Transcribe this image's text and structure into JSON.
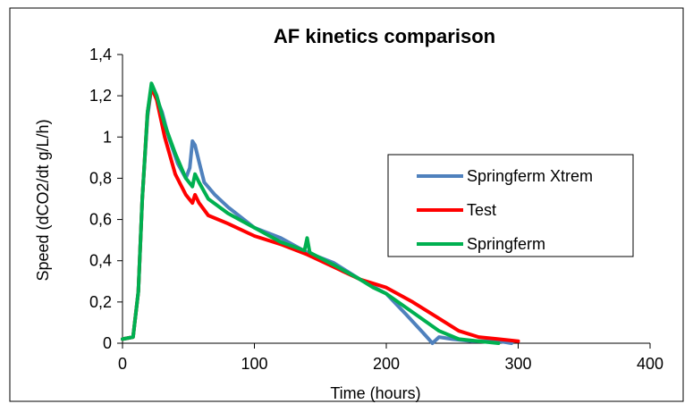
{
  "chart_data": {
    "type": "line",
    "title": "AF kinetics comparison",
    "xlabel": "Time (hours)",
    "ylabel": "Speed (dCO2/dt g/L/h)",
    "xlim": [
      0,
      400
    ],
    "ylim": [
      0,
      1.4
    ],
    "x_ticks": [
      "0",
      "100",
      "200",
      "300",
      "400"
    ],
    "y_ticks": [
      "0",
      "0,2",
      "0,4",
      "0,6",
      "0,8",
      "1",
      "1,2",
      "1,4"
    ],
    "grid": false,
    "legend_placement": "right",
    "series": [
      {
        "name": "Springferm Xtrem",
        "color": "#4f81bd",
        "points": [
          [
            0,
            0.02
          ],
          [
            8,
            0.03
          ],
          [
            12,
            0.25
          ],
          [
            15,
            0.7
          ],
          [
            19,
            1.1
          ],
          [
            22,
            1.24
          ],
          [
            25,
            1.2
          ],
          [
            30,
            1.12
          ],
          [
            35,
            1.0
          ],
          [
            42,
            0.87
          ],
          [
            48,
            0.8
          ],
          [
            51,
            0.85
          ],
          [
            53,
            0.98
          ],
          [
            55,
            0.96
          ],
          [
            58,
            0.88
          ],
          [
            62,
            0.78
          ],
          [
            70,
            0.72
          ],
          [
            80,
            0.66
          ],
          [
            100,
            0.56
          ],
          [
            120,
            0.51
          ],
          [
            140,
            0.44
          ],
          [
            160,
            0.39
          ],
          [
            180,
            0.31
          ],
          [
            200,
            0.24
          ],
          [
            215,
            0.14
          ],
          [
            228,
            0.05
          ],
          [
            235,
            0.0
          ],
          [
            240,
            0.03
          ],
          [
            250,
            0.02
          ],
          [
            265,
            0.01
          ],
          [
            285,
            0.01
          ],
          [
            295,
            0.0
          ]
        ]
      },
      {
        "name": "Test",
        "color": "#ff0000",
        "points": [
          [
            0,
            0.02
          ],
          [
            8,
            0.03
          ],
          [
            12,
            0.25
          ],
          [
            15,
            0.7
          ],
          [
            19,
            1.12
          ],
          [
            22,
            1.24
          ],
          [
            26,
            1.18
          ],
          [
            32,
            1.0
          ],
          [
            40,
            0.82
          ],
          [
            48,
            0.72
          ],
          [
            53,
            0.68
          ],
          [
            55,
            0.72
          ],
          [
            58,
            0.68
          ],
          [
            65,
            0.62
          ],
          [
            80,
            0.58
          ],
          [
            100,
            0.52
          ],
          [
            120,
            0.48
          ],
          [
            140,
            0.43
          ],
          [
            160,
            0.37
          ],
          [
            180,
            0.31
          ],
          [
            200,
            0.27
          ],
          [
            220,
            0.2
          ],
          [
            240,
            0.12
          ],
          [
            255,
            0.06
          ],
          [
            270,
            0.03
          ],
          [
            285,
            0.02
          ],
          [
            300,
            0.01
          ]
        ]
      },
      {
        "name": "Springferm",
        "color": "#00b050",
        "points": [
          [
            0,
            0.02
          ],
          [
            8,
            0.03
          ],
          [
            12,
            0.25
          ],
          [
            15,
            0.7
          ],
          [
            19,
            1.12
          ],
          [
            22,
            1.26
          ],
          [
            26,
            1.2
          ],
          [
            32,
            1.06
          ],
          [
            40,
            0.92
          ],
          [
            48,
            0.8
          ],
          [
            53,
            0.76
          ],
          [
            55,
            0.82
          ],
          [
            58,
            0.78
          ],
          [
            65,
            0.7
          ],
          [
            80,
            0.63
          ],
          [
            100,
            0.56
          ],
          [
            120,
            0.49
          ],
          [
            138,
            0.45
          ],
          [
            140,
            0.51
          ],
          [
            142,
            0.44
          ],
          [
            160,
            0.38
          ],
          [
            180,
            0.31
          ],
          [
            190,
            0.27
          ],
          [
            200,
            0.24
          ],
          [
            220,
            0.15
          ],
          [
            240,
            0.06
          ],
          [
            255,
            0.02
          ],
          [
            270,
            0.01
          ],
          [
            285,
            0.0
          ]
        ]
      }
    ]
  }
}
